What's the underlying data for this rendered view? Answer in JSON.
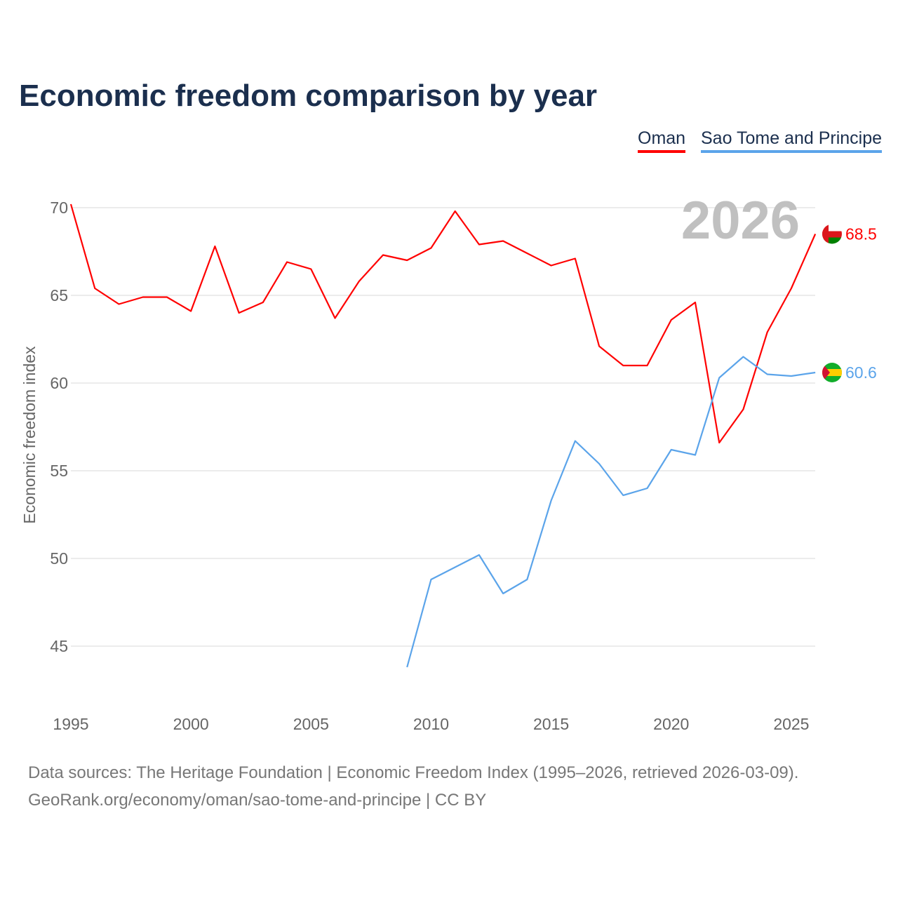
{
  "chart_data": {
    "type": "line",
    "title": "Economic freedom comparison by year",
    "xlabel": "",
    "ylabel": "Economic freedom index",
    "xlim": [
      1995,
      2026
    ],
    "ylim": [
      42,
      72
    ],
    "x_ticks": [
      1995,
      2000,
      2005,
      2010,
      2015,
      2020,
      2025
    ],
    "y_ticks": [
      45,
      50,
      55,
      60,
      65,
      70
    ],
    "grid": true,
    "legend_placement": "top-right",
    "year_label": "2026",
    "series": [
      {
        "name": "Oman",
        "color": "#ff0000",
        "end_label": "68.5",
        "x": [
          1995,
          1996,
          1997,
          1998,
          1999,
          2000,
          2001,
          2002,
          2003,
          2004,
          2005,
          2006,
          2007,
          2008,
          2009,
          2010,
          2011,
          2012,
          2013,
          2014,
          2015,
          2016,
          2017,
          2018,
          2019,
          2020,
          2021,
          2022,
          2023,
          2024,
          2025,
          2026
        ],
        "values": [
          70.2,
          65.4,
          64.5,
          64.9,
          64.9,
          64.1,
          67.8,
          64.0,
          64.6,
          66.9,
          66.5,
          63.7,
          65.8,
          67.3,
          67.0,
          67.7,
          69.8,
          67.9,
          68.1,
          67.4,
          66.7,
          67.1,
          62.1,
          61.0,
          61.0,
          63.6,
          64.6,
          56.6,
          58.5,
          62.9,
          65.4,
          68.5
        ]
      },
      {
        "name": "Sao Tome and Principe",
        "color": "#5ba4ea",
        "end_label": "60.6",
        "x": [
          2009,
          2010,
          2011,
          2012,
          2013,
          2014,
          2015,
          2016,
          2017,
          2018,
          2019,
          2020,
          2021,
          2022,
          2023,
          2024,
          2025,
          2026
        ],
        "values": [
          43.8,
          48.8,
          49.5,
          50.2,
          48.0,
          48.8,
          53.3,
          56.7,
          55.4,
          53.6,
          54.0,
          56.2,
          55.9,
          60.3,
          61.5,
          60.5,
          60.4,
          60.6
        ]
      }
    ]
  },
  "source": {
    "line1": "Data sources: The Heritage Foundation | Economic Freedom Index (1995–2026, retrieved 2026-03-09).",
    "line2": "GeoRank.org/economy/oman/sao-tome-and-principe | CC BY"
  }
}
